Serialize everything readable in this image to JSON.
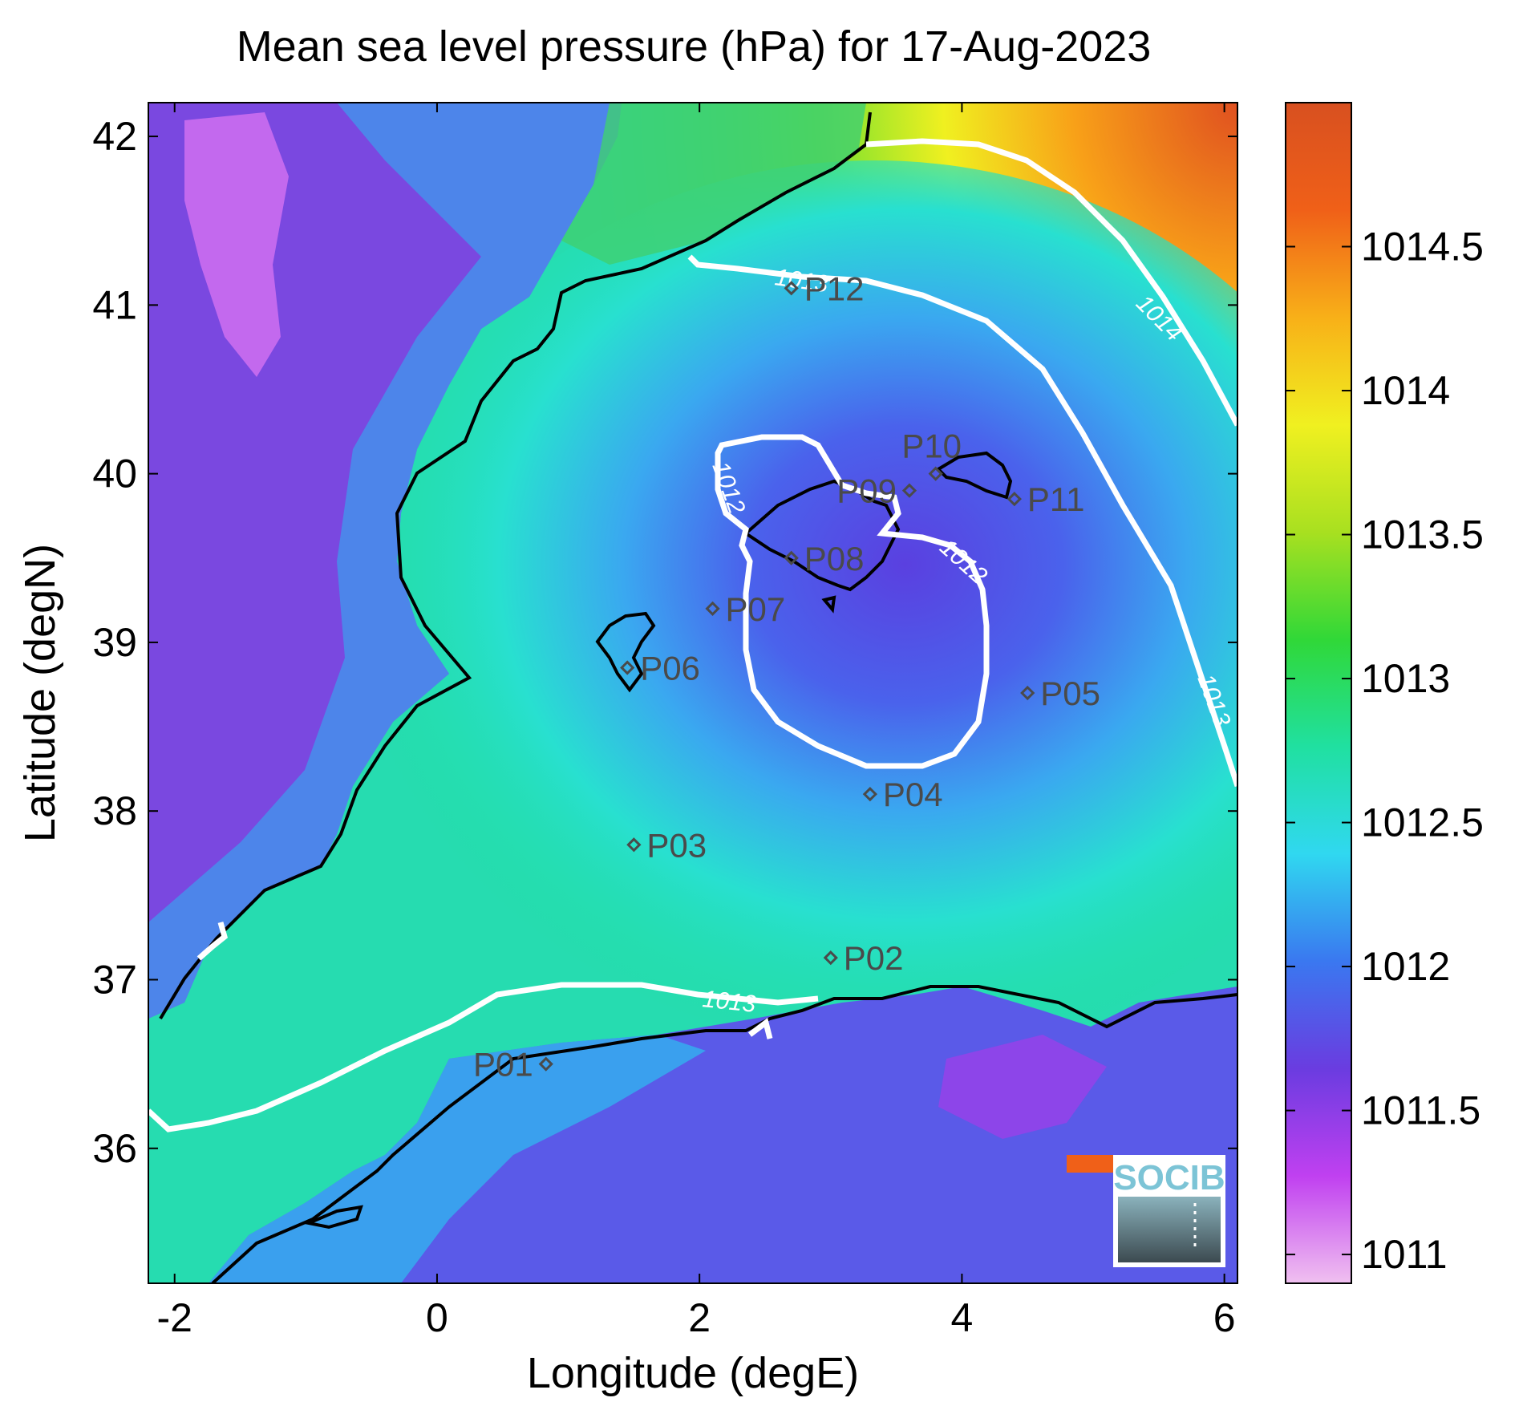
{
  "title": "Mean sea level pressure (hPa) for 17-Aug-2023",
  "xaxis": {
    "label": "Longitude (degE)",
    "ticks": [
      "-2",
      "0",
      "2",
      "4",
      "6"
    ],
    "values": [
      -2,
      0,
      2,
      4,
      6
    ],
    "range": [
      -2.2,
      6.1
    ]
  },
  "yaxis": {
    "label": "Latitude (degN)",
    "ticks": [
      "36",
      "37",
      "38",
      "39",
      "40",
      "41",
      "42"
    ],
    "values": [
      36,
      37,
      38,
      39,
      40,
      41,
      42
    ],
    "range": [
      35.2,
      42.2
    ]
  },
  "colorbar": {
    "ticks": [
      "1011",
      "1011.5",
      "1012",
      "1012.5",
      "1013",
      "1013.5",
      "1014",
      "1014.5"
    ],
    "values": [
      1011,
      1011.5,
      1012,
      1012.5,
      1013,
      1013.5,
      1014,
      1014.5
    ],
    "range": [
      1010.9,
      1015.0
    ],
    "colors": [
      "#f0c0f0",
      "#c040f0",
      "#6a3ce0",
      "#3a78f0",
      "#30d8f0",
      "#20e0a0",
      "#30d838",
      "#a8e020",
      "#f0f020",
      "#f8b018",
      "#f06018",
      "#d85020"
    ]
  },
  "contour_labels": [
    "1012",
    "1012",
    "1013",
    "1013",
    "1013",
    "1014"
  ],
  "stations": [
    {
      "name": "P01",
      "lon": 0.83,
      "lat": 36.5,
      "anchor": "end"
    },
    {
      "name": "P02",
      "lon": 3.0,
      "lat": 37.13,
      "anchor": "start"
    },
    {
      "name": "P03",
      "lon": 1.5,
      "lat": 37.8,
      "anchor": "start"
    },
    {
      "name": "P04",
      "lon": 3.3,
      "lat": 38.1,
      "anchor": "start"
    },
    {
      "name": "P05",
      "lon": 4.5,
      "lat": 38.7,
      "anchor": "start"
    },
    {
      "name": "P06",
      "lon": 1.45,
      "lat": 38.85,
      "anchor": "start"
    },
    {
      "name": "P07",
      "lon": 2.1,
      "lat": 39.2,
      "anchor": "start"
    },
    {
      "name": "P08",
      "lon": 2.7,
      "lat": 39.5,
      "anchor": "start"
    },
    {
      "name": "P09",
      "lon": 3.6,
      "lat": 39.9,
      "anchor": "end"
    },
    {
      "name": "P10",
      "lon": 3.8,
      "lat": 40.0,
      "anchor": "middle-above"
    },
    {
      "name": "P11",
      "lon": 4.4,
      "lat": 39.85,
      "anchor": "start"
    },
    {
      "name": "P12",
      "lon": 2.7,
      "lat": 41.1,
      "anchor": "start"
    }
  ],
  "logo": {
    "text": "SOCIB"
  }
}
